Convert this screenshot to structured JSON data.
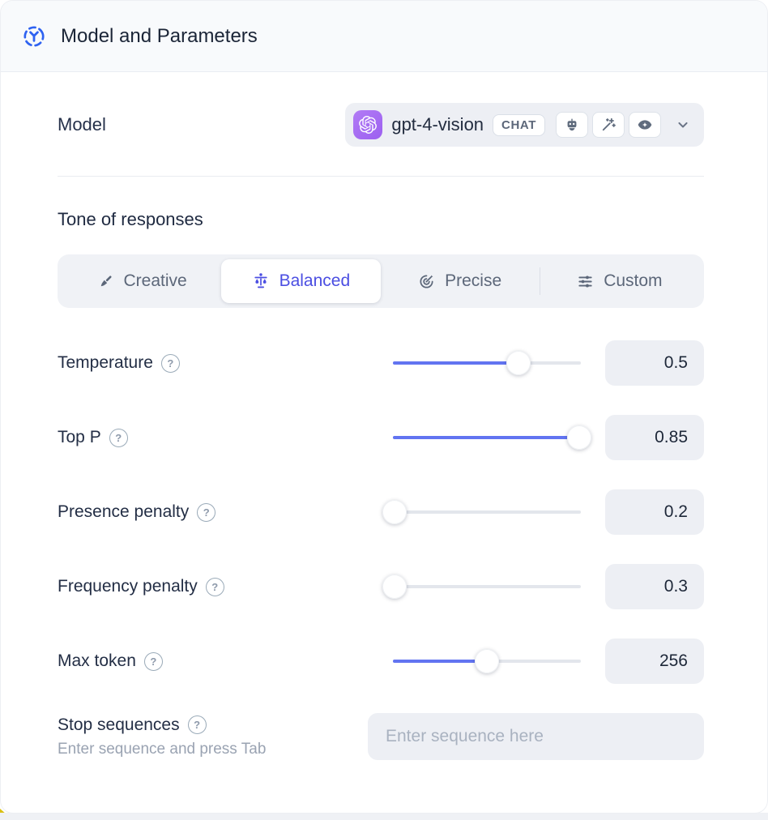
{
  "header": {
    "title": "Model and Parameters"
  },
  "model": {
    "label": "Model",
    "name": "gpt-4-vision",
    "type_badge": "CHAT",
    "capability_icons": [
      "robot-icon",
      "magic-wand-icon",
      "vision-eye-icon"
    ]
  },
  "tone": {
    "heading": "Tone of responses",
    "options": [
      {
        "label": "Creative",
        "icon": "paintbrush-icon",
        "selected": false
      },
      {
        "label": "Balanced",
        "icon": "balance-scale-icon",
        "selected": true
      },
      {
        "label": "Precise",
        "icon": "target-dart-icon",
        "selected": false
      },
      {
        "label": "Custom",
        "icon": "sliders-icon",
        "selected": false
      }
    ]
  },
  "params": [
    {
      "label": "Temperature",
      "value": "0.5",
      "slider_pct": 67
    },
    {
      "label": "Top P",
      "value": "0.85",
      "slider_pct": 99
    },
    {
      "label": "Presence penalty",
      "value": "0.2",
      "slider_pct": 1
    },
    {
      "label": "Frequency penalty",
      "value": "0.3",
      "slider_pct": 1
    },
    {
      "label": "Max token",
      "value": "256",
      "slider_pct": 50
    }
  ],
  "stop_sequences": {
    "label": "Stop sequences",
    "hint": "Enter sequence and press Tab",
    "placeholder": "Enter sequence here"
  },
  "colors": {
    "slider_accent": "#6274f1",
    "selected_tone": "#4b4ee2",
    "brand_purple": "#a466f1",
    "header_bg": "#f8fafc",
    "control_bg": "#edeff4"
  }
}
